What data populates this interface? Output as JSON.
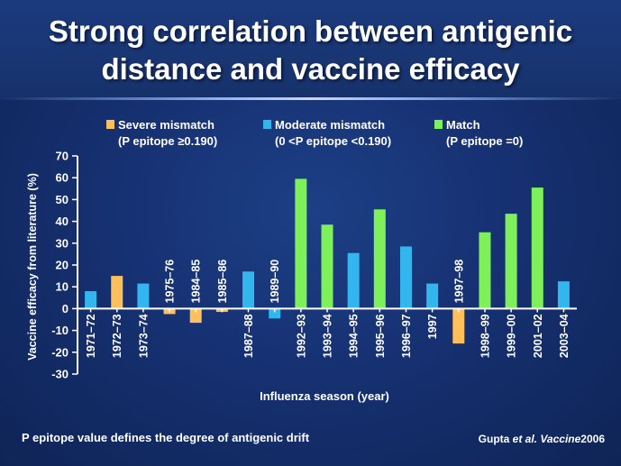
{
  "title": {
    "line1": "Strong correlation between antigenic",
    "line2": "distance and vaccine efficacy"
  },
  "footnote": "P epitope value defines the degree of antigenic drift",
  "citation": {
    "author": "Gupta",
    "etal": "et al.",
    "journal": "Vaccine",
    "year": "2006"
  },
  "colors": {
    "severe": "#ffbf5a",
    "moderate": "#33b5ee",
    "match": "#7df05a"
  },
  "chart_data": {
    "type": "bar",
    "xlabel": "Influenza season (year)",
    "ylabel": "Vaccine efficacy from literature (%)",
    "ylim": [
      -30,
      70
    ],
    "yticks": [
      -30,
      -20,
      -10,
      0,
      10,
      20,
      30,
      40,
      50,
      60,
      70
    ],
    "legend": [
      {
        "key": "severe",
        "name": "Severe mismatch",
        "sub": "(P epitope ≥0.190)"
      },
      {
        "key": "moderate",
        "name": "Moderate mismatch",
        "sub": "(0 <P epitope <0.190)"
      },
      {
        "key": "match",
        "name": "Match",
        "sub": "(P epitope =0)"
      }
    ],
    "categories": [
      "1971–72",
      "1972–73",
      "1973–74",
      "1975–76",
      "1984–85",
      "1985–86",
      "1987–88",
      "1989–90",
      "1992–93",
      "1993–94",
      "1994–95",
      "1995–96",
      "1996–97",
      "1997",
      "1997–98",
      "1998–99",
      "1999–00",
      "2001–02",
      "2003–04"
    ],
    "values": [
      8,
      15,
      11.5,
      -2.5,
      -6.5,
      -1.5,
      17,
      -4.5,
      59.5,
      38.5,
      25.5,
      45.5,
      28.5,
      11.5,
      -16,
      35,
      43.5,
      55.5,
      12.5
    ],
    "groups": [
      "moderate",
      "severe",
      "moderate",
      "severe",
      "severe",
      "severe",
      "moderate",
      "moderate",
      "match",
      "match",
      "moderate",
      "match",
      "moderate",
      "moderate",
      "severe",
      "match",
      "match",
      "match",
      "moderate"
    ]
  }
}
